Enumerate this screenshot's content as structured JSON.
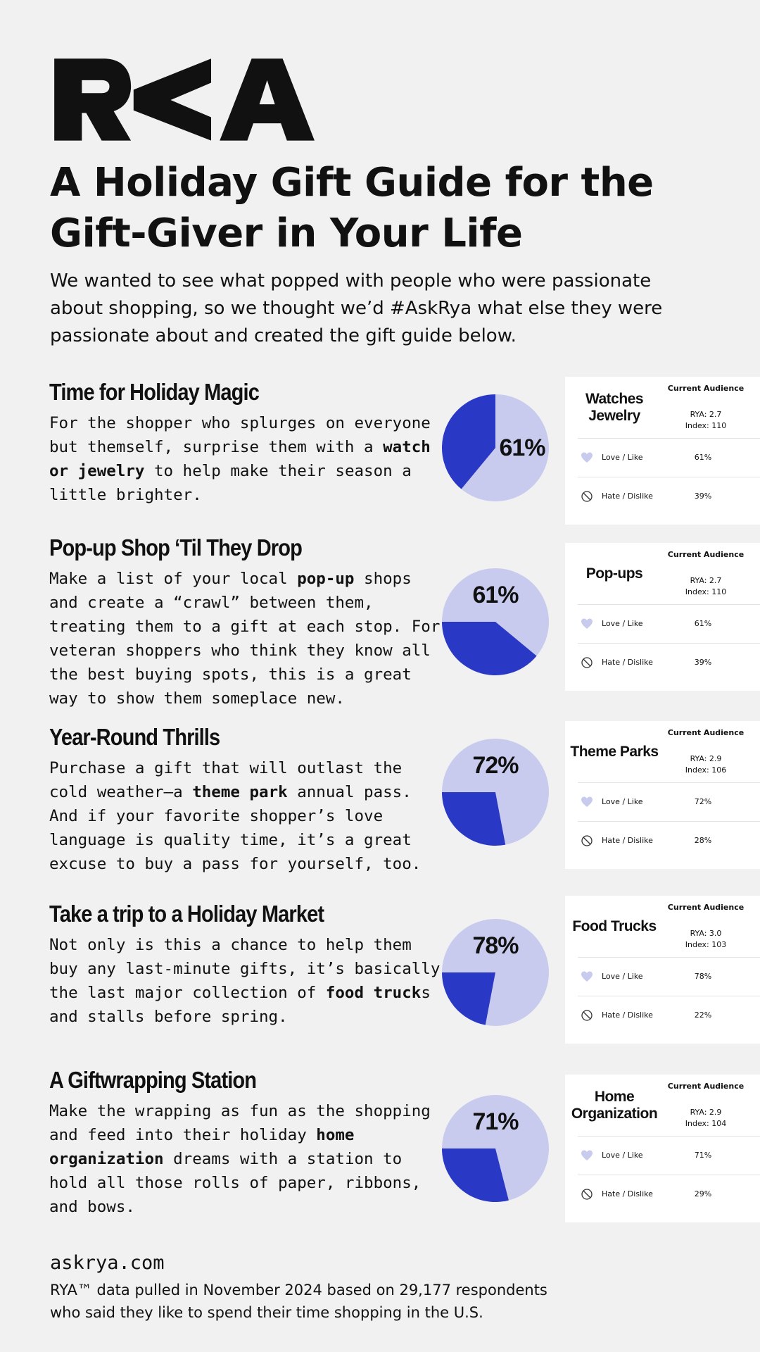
{
  "header": {
    "title": "A Holiday Gift Guide for the Gift-Giver in Your Life",
    "intro": "We wanted to see what popped with people who were passionate about shopping, so we thought we’d #AskRya what else they were passionate about and created the gift guide below."
  },
  "sections": [
    {
      "title": "Time for Holiday Magic",
      "body": [
        {
          "text": "For the shopper who splurges on everyone but themself, surprise them with a ",
          "bold": false
        },
        {
          "text": "watch or jewelry",
          "bold": true
        },
        {
          "text": " to help make their season a little brighter.",
          "bold": false
        }
      ],
      "pie": {
        "values": [
          61,
          39
        ],
        "value_labels": [
          "61%",
          "39%"
        ]
      },
      "card": {
        "name": "Watches Jewelry",
        "header": "Current Audience",
        "rya": "RYA: 2.7",
        "index": "Index: 110",
        "rows": [
          "Love / Like",
          "Hate / Dislike"
        ]
      }
    },
    {
      "title": "Pop-up Shop ‘Til They Drop",
      "body": [
        {
          "text": "Make a list of your local ",
          "bold": false
        },
        {
          "text": "pop-up",
          "bold": true
        },
        {
          "text": " shops and create a “crawl” between them, treating them to a gift at each stop. For veteran shoppers who think they know all the best buying spots, this is a great way to show them someplace new.",
          "bold": false
        }
      ],
      "pie": {
        "values": [
          61,
          39
        ],
        "value_labels": [
          "61%",
          "39%"
        ]
      },
      "card": {
        "name": "Pop-ups",
        "header": "Current Audience",
        "rya": "RYA: 2.7",
        "index": "Index: 110",
        "rows": [
          "Love / Like",
          "Hate / Dislike"
        ]
      }
    },
    {
      "title": "Year-Round Thrills",
      "body": [
        {
          "text": "Purchase a gift that will outlast the cold weather—a ",
          "bold": false
        },
        {
          "text": "theme park",
          "bold": true
        },
        {
          "text": " annual pass. And if your favorite shopper’s love language is quality time, it’s a great excuse to buy a pass for yourself, too.",
          "bold": false
        }
      ],
      "pie": {
        "values": [
          72,
          28
        ],
        "value_labels": [
          "72%",
          "28%"
        ]
      },
      "card": {
        "name": "Theme Parks",
        "header": "Current Audience",
        "rya": "RYA: 2.9",
        "index": "Index: 106",
        "rows": [
          "Love / Like",
          "Hate / Dislike"
        ]
      }
    },
    {
      "title": "Take a trip to a Holiday Market",
      "body": [
        {
          "text": "Not only is this a chance to help them buy any last-minute gifts, it’s basically the last major collection of ",
          "bold": false
        },
        {
          "text": "food truck",
          "bold": true
        },
        {
          "text": "s and stalls before spring.",
          "bold": false
        }
      ],
      "pie": {
        "values": [
          78,
          22
        ],
        "value_labels": [
          "78%",
          "22%"
        ]
      },
      "card": {
        "name": "Food Trucks",
        "header": "Current Audience",
        "rya": "RYA: 3.0",
        "index": "Index: 103",
        "rows": [
          "Love / Like",
          "Hate / Dislike"
        ]
      }
    },
    {
      "title": "A Giftwrapping Station",
      "body": [
        {
          "text": "Make the wrapping as fun as the shopping and feed into their holiday ",
          "bold": false
        },
        {
          "text": "home organization",
          "bold": true
        },
        {
          "text": " dreams with a station to hold all those rolls of paper, ribbons, and bows.",
          "bold": false
        }
      ],
      "pie": {
        "values": [
          71,
          29
        ],
        "value_labels": [
          "71%",
          "29%"
        ]
      },
      "card": {
        "name": "Home Organization",
        "header": "Current Audience",
        "rya": "RYA: 2.9",
        "index": "Index: 104",
        "rows": [
          "Love / Like",
          "Hate / Dislike"
        ]
      }
    }
  ],
  "footer": {
    "site": "askrya.com",
    "note": "RYA™ data pulled in November 2024 based on 29,177 respondents who said they like to spend their time shopping in the U.S."
  }
}
